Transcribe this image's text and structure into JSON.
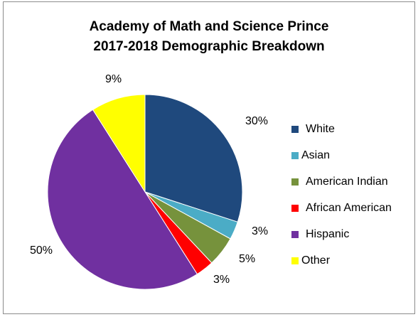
{
  "chart_data": {
    "type": "pie",
    "title_lines": [
      "Academy of Math and Science Prince",
      "2017-2018 Demographic Breakdown"
    ],
    "categories": [
      "White",
      "Asian",
      "American Indian",
      "African American",
      "Hispanic",
      "Other"
    ],
    "values": [
      30,
      3,
      5,
      3,
      50,
      9
    ],
    "labels": [
      "30%",
      "3%",
      "5%",
      "3%",
      "50%",
      "9%"
    ],
    "colors": [
      "#1f497d",
      "#4bacc6",
      "#76923c",
      "#ff0000",
      "#7030a0",
      "#ffff00"
    ],
    "start_angle": "12 o'clock",
    "direction": "clockwise",
    "legend_position": "right"
  }
}
